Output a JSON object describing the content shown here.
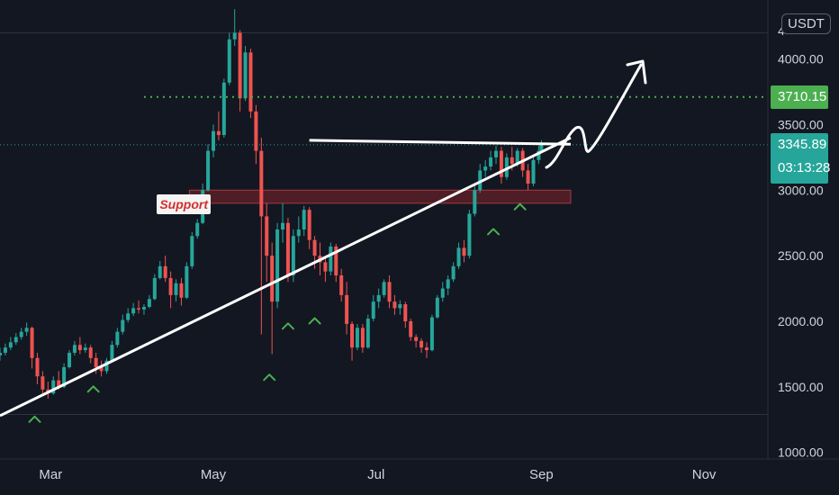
{
  "chart_data": {
    "type": "candlestick",
    "quote_currency": "USDT",
    "y_axis": {
      "ticks": [
        "4000.00",
        "3500.00",
        "3000.00",
        "2500.00",
        "2000.00",
        "1500.00",
        "1000.00"
      ],
      "top_partial_label": "4",
      "range": [
        950,
        4450
      ]
    },
    "x_axis": {
      "ticks": [
        {
          "label": "Mar",
          "date": "2021-03-01"
        },
        {
          "label": "May",
          "date": "2021-05-01"
        },
        {
          "label": "Jul",
          "date": "2021-07-01"
        },
        {
          "label": "Sep",
          "date": "2021-09-01"
        },
        {
          "label": "Nov",
          "date": "2021-11-01"
        }
      ],
      "range": [
        "2021-02-10",
        "2021-11-30"
      ]
    },
    "price_levels": {
      "target": "3710.15",
      "current": "3345.89",
      "countdown": "03:13:28",
      "target_color": "#4caf50",
      "current_color": "#26a69a"
    },
    "annotations": {
      "support_label": "Support",
      "support_zone": {
        "from_date": "2021-04-22",
        "to_date": "2021-09-12",
        "low": 2900,
        "high": 3000
      },
      "trendline": {
        "start": {
          "date": "2021-02-10",
          "price": 1280
        },
        "end": {
          "date": "2021-09-12",
          "price": 3400
        }
      },
      "resistance_line": {
        "start": {
          "date": "2021-06-06",
          "price": 3380
        },
        "end": {
          "date": "2021-09-12",
          "price": 3350
        }
      },
      "bounce_markers": [
        {
          "date": "2021-02-23",
          "price": 1370
        },
        {
          "date": "2021-03-17",
          "price": 1600
        },
        {
          "date": "2021-05-22",
          "price": 1690
        },
        {
          "date": "2021-05-29",
          "price": 2080
        },
        {
          "date": "2021-06-08",
          "price": 2120
        },
        {
          "date": "2021-08-14",
          "price": 2800
        },
        {
          "date": "2021-08-24",
          "price": 2990
        }
      ]
    },
    "candles": [
      {
        "date": "2021-02-10",
        "o": 1740,
        "h": 1800,
        "c": 1760,
        "l": 1700
      },
      {
        "date": "2021-02-12",
        "o": 1760,
        "h": 1830,
        "c": 1800,
        "l": 1740
      },
      {
        "date": "2021-02-14",
        "o": 1800,
        "h": 1880,
        "c": 1840,
        "l": 1780
      },
      {
        "date": "2021-02-16",
        "o": 1840,
        "h": 1910,
        "c": 1880,
        "l": 1820
      },
      {
        "date": "2021-02-18",
        "o": 1880,
        "h": 1950,
        "c": 1920,
        "l": 1860
      },
      {
        "date": "2021-02-20",
        "o": 1920,
        "h": 1990,
        "c": 1950,
        "l": 1890
      },
      {
        "date": "2021-02-22",
        "o": 1950,
        "h": 1960,
        "c": 1720,
        "l": 1640
      },
      {
        "date": "2021-02-24",
        "o": 1720,
        "h": 1760,
        "c": 1580,
        "l": 1520
      },
      {
        "date": "2021-02-26",
        "o": 1580,
        "h": 1620,
        "c": 1480,
        "l": 1430
      },
      {
        "date": "2021-02-28",
        "o": 1480,
        "h": 1540,
        "c": 1450,
        "l": 1410
      },
      {
        "date": "2021-03-02",
        "o": 1450,
        "h": 1580,
        "c": 1550,
        "l": 1440
      },
      {
        "date": "2021-03-04",
        "o": 1550,
        "h": 1620,
        "c": 1500,
        "l": 1480
      },
      {
        "date": "2021-03-06",
        "o": 1500,
        "h": 1680,
        "c": 1650,
        "l": 1490
      },
      {
        "date": "2021-03-08",
        "o": 1650,
        "h": 1780,
        "c": 1760,
        "l": 1640
      },
      {
        "date": "2021-03-10",
        "o": 1760,
        "h": 1850,
        "c": 1820,
        "l": 1740
      },
      {
        "date": "2021-03-12",
        "o": 1820,
        "h": 1880,
        "c": 1780,
        "l": 1750
      },
      {
        "date": "2021-03-14",
        "o": 1780,
        "h": 1830,
        "c": 1800,
        "l": 1760
      },
      {
        "date": "2021-03-16",
        "o": 1800,
        "h": 1820,
        "c": 1720,
        "l": 1680
      },
      {
        "date": "2021-03-18",
        "o": 1720,
        "h": 1760,
        "c": 1650,
        "l": 1600
      },
      {
        "date": "2021-03-20",
        "o": 1650,
        "h": 1700,
        "c": 1620,
        "l": 1580
      },
      {
        "date": "2021-03-22",
        "o": 1620,
        "h": 1720,
        "c": 1700,
        "l": 1600
      },
      {
        "date": "2021-03-24",
        "o": 1700,
        "h": 1850,
        "c": 1820,
        "l": 1690
      },
      {
        "date": "2021-03-26",
        "o": 1820,
        "h": 1950,
        "c": 1920,
        "l": 1800
      },
      {
        "date": "2021-03-28",
        "o": 1920,
        "h": 2050,
        "c": 2010,
        "l": 1900
      },
      {
        "date": "2021-03-30",
        "o": 2010,
        "h": 2100,
        "c": 2060,
        "l": 1990
      },
      {
        "date": "2021-04-01",
        "o": 2060,
        "h": 2140,
        "c": 2100,
        "l": 2040
      },
      {
        "date": "2021-04-03",
        "o": 2100,
        "h": 2160,
        "c": 2090,
        "l": 2060
      },
      {
        "date": "2021-04-05",
        "o": 2090,
        "h": 2130,
        "c": 2110,
        "l": 2050
      },
      {
        "date": "2021-04-07",
        "o": 2110,
        "h": 2200,
        "c": 2170,
        "l": 2100
      },
      {
        "date": "2021-04-09",
        "o": 2170,
        "h": 2360,
        "c": 2330,
        "l": 2160
      },
      {
        "date": "2021-04-11",
        "o": 2330,
        "h": 2460,
        "c": 2420,
        "l": 2320
      },
      {
        "date": "2021-04-13",
        "o": 2420,
        "h": 2500,
        "c": 2330,
        "l": 2300
      },
      {
        "date": "2021-04-15",
        "o": 2330,
        "h": 2380,
        "c": 2200,
        "l": 2100
      },
      {
        "date": "2021-04-17",
        "o": 2200,
        "h": 2320,
        "c": 2290,
        "l": 2150
      },
      {
        "date": "2021-04-19",
        "o": 2290,
        "h": 2330,
        "c": 2180,
        "l": 2120
      },
      {
        "date": "2021-04-21",
        "o": 2180,
        "h": 2450,
        "c": 2420,
        "l": 2170
      },
      {
        "date": "2021-04-23",
        "o": 2420,
        "h": 2680,
        "c": 2650,
        "l": 2400
      },
      {
        "date": "2021-04-25",
        "o": 2650,
        "h": 2780,
        "c": 2750,
        "l": 2630
      },
      {
        "date": "2021-04-27",
        "o": 2750,
        "h": 3050,
        "c": 3000,
        "l": 2740
      },
      {
        "date": "2021-04-29",
        "o": 3000,
        "h": 3350,
        "c": 3300,
        "l": 2990
      },
      {
        "date": "2021-05-01",
        "o": 3300,
        "h": 3500,
        "c": 3450,
        "l": 3250
      },
      {
        "date": "2021-05-03",
        "o": 3450,
        "h": 3600,
        "c": 3420,
        "l": 3380
      },
      {
        "date": "2021-05-05",
        "o": 3420,
        "h": 3850,
        "c": 3820,
        "l": 3400
      },
      {
        "date": "2021-05-07",
        "o": 3820,
        "h": 4200,
        "c": 4150,
        "l": 3800
      },
      {
        "date": "2021-05-09",
        "o": 4150,
        "h": 4380,
        "c": 4200,
        "l": 4100
      },
      {
        "date": "2021-05-11",
        "o": 4200,
        "h": 4220,
        "c": 3700,
        "l": 3600
      },
      {
        "date": "2021-05-13",
        "o": 3700,
        "h": 4100,
        "c": 4050,
        "l": 3680
      },
      {
        "date": "2021-05-15",
        "o": 4050,
        "h": 4080,
        "c": 3600,
        "l": 3550
      },
      {
        "date": "2021-05-17",
        "o": 3600,
        "h": 3650,
        "c": 3300,
        "l": 3200
      },
      {
        "date": "2021-05-19",
        "o": 3300,
        "h": 3400,
        "c": 2800,
        "l": 1900
      },
      {
        "date": "2021-05-21",
        "o": 2800,
        "h": 2900,
        "c": 2500,
        "l": 2300
      },
      {
        "date": "2021-05-23",
        "o": 2500,
        "h": 2600,
        "c": 2150,
        "l": 1750
      },
      {
        "date": "2021-05-25",
        "o": 2150,
        "h": 2750,
        "c": 2700,
        "l": 2100
      },
      {
        "date": "2021-05-27",
        "o": 2700,
        "h": 2900,
        "c": 2750,
        "l": 2600
      },
      {
        "date": "2021-05-29",
        "o": 2750,
        "h": 2790,
        "c": 2350,
        "l": 2300
      },
      {
        "date": "2021-05-31",
        "o": 2350,
        "h": 2700,
        "c": 2650,
        "l": 2300
      },
      {
        "date": "2021-06-02",
        "o": 2650,
        "h": 2800,
        "c": 2700,
        "l": 2600
      },
      {
        "date": "2021-06-04",
        "o": 2700,
        "h": 2880,
        "c": 2850,
        "l": 2650
      },
      {
        "date": "2021-06-06",
        "o": 2850,
        "h": 2870,
        "c": 2620,
        "l": 2550
      },
      {
        "date": "2021-06-08",
        "o": 2620,
        "h": 2650,
        "c": 2500,
        "l": 2400
      },
      {
        "date": "2021-06-10",
        "o": 2500,
        "h": 2600,
        "c": 2450,
        "l": 2350
      },
      {
        "date": "2021-06-12",
        "o": 2450,
        "h": 2500,
        "c": 2380,
        "l": 2300
      },
      {
        "date": "2021-06-14",
        "o": 2380,
        "h": 2600,
        "c": 2570,
        "l": 2350
      },
      {
        "date": "2021-06-16",
        "o": 2570,
        "h": 2590,
        "c": 2350,
        "l": 2300
      },
      {
        "date": "2021-06-18",
        "o": 2350,
        "h": 2400,
        "c": 2200,
        "l": 2150
      },
      {
        "date": "2021-06-20",
        "o": 2200,
        "h": 2300,
        "c": 1980,
        "l": 1900
      },
      {
        "date": "2021-06-22",
        "o": 1980,
        "h": 2000,
        "c": 1800,
        "l": 1700
      },
      {
        "date": "2021-06-24",
        "o": 1800,
        "h": 1980,
        "c": 1950,
        "l": 1780
      },
      {
        "date": "2021-06-26",
        "o": 1950,
        "h": 1980,
        "c": 1800,
        "l": 1760
      },
      {
        "date": "2021-06-28",
        "o": 1800,
        "h": 2050,
        "c": 2020,
        "l": 1790
      },
      {
        "date": "2021-06-30",
        "o": 2020,
        "h": 2200,
        "c": 2150,
        "l": 2000
      },
      {
        "date": "2021-07-02",
        "o": 2150,
        "h": 2250,
        "c": 2200,
        "l": 2100
      },
      {
        "date": "2021-07-04",
        "o": 2200,
        "h": 2320,
        "c": 2300,
        "l": 2180
      },
      {
        "date": "2021-07-06",
        "o": 2300,
        "h": 2350,
        "c": 2150,
        "l": 2100
      },
      {
        "date": "2021-07-08",
        "o": 2150,
        "h": 2200,
        "c": 2100,
        "l": 2050
      },
      {
        "date": "2021-07-10",
        "o": 2100,
        "h": 2160,
        "c": 2130,
        "l": 2050
      },
      {
        "date": "2021-07-12",
        "o": 2130,
        "h": 2150,
        "c": 2000,
        "l": 1950
      },
      {
        "date": "2021-07-14",
        "o": 2000,
        "h": 2020,
        "c": 1880,
        "l": 1850
      },
      {
        "date": "2021-07-16",
        "o": 1880,
        "h": 1900,
        "c": 1850,
        "l": 1800
      },
      {
        "date": "2021-07-18",
        "o": 1850,
        "h": 1870,
        "c": 1800,
        "l": 1760
      },
      {
        "date": "2021-07-20",
        "o": 1800,
        "h": 1840,
        "c": 1780,
        "l": 1720
      },
      {
        "date": "2021-07-22",
        "o": 1780,
        "h": 2050,
        "c": 2030,
        "l": 1770
      },
      {
        "date": "2021-07-24",
        "o": 2030,
        "h": 2200,
        "c": 2180,
        "l": 2020
      },
      {
        "date": "2021-07-26",
        "o": 2180,
        "h": 2300,
        "c": 2250,
        "l": 2150
      },
      {
        "date": "2021-07-28",
        "o": 2250,
        "h": 2350,
        "c": 2320,
        "l": 2200
      },
      {
        "date": "2021-07-30",
        "o": 2320,
        "h": 2450,
        "c": 2420,
        "l": 2300
      },
      {
        "date": "2021-08-01",
        "o": 2420,
        "h": 2600,
        "c": 2560,
        "l": 2400
      },
      {
        "date": "2021-08-03",
        "o": 2560,
        "h": 2620,
        "c": 2500,
        "l": 2450
      },
      {
        "date": "2021-08-05",
        "o": 2500,
        "h": 2850,
        "c": 2820,
        "l": 2480
      },
      {
        "date": "2021-08-07",
        "o": 2820,
        "h": 3050,
        "c": 3000,
        "l": 2800
      },
      {
        "date": "2021-08-09",
        "o": 3000,
        "h": 3200,
        "c": 3150,
        "l": 2980
      },
      {
        "date": "2021-08-11",
        "o": 3150,
        "h": 3230,
        "c": 3180,
        "l": 3100
      },
      {
        "date": "2021-08-13",
        "o": 3180,
        "h": 3300,
        "c": 3250,
        "l": 3150
      },
      {
        "date": "2021-08-15",
        "o": 3250,
        "h": 3340,
        "c": 3300,
        "l": 3200
      },
      {
        "date": "2021-08-17",
        "o": 3300,
        "h": 3330,
        "c": 3100,
        "l": 3050
      },
      {
        "date": "2021-08-19",
        "o": 3100,
        "h": 3280,
        "c": 3250,
        "l": 3080
      },
      {
        "date": "2021-08-21",
        "o": 3250,
        "h": 3330,
        "c": 3200,
        "l": 3150
      },
      {
        "date": "2021-08-23",
        "o": 3200,
        "h": 3320,
        "c": 3300,
        "l": 3180
      },
      {
        "date": "2021-08-25",
        "o": 3300,
        "h": 3320,
        "c": 3150,
        "l": 3100
      },
      {
        "date": "2021-08-27",
        "o": 3150,
        "h": 3200,
        "c": 3050,
        "l": 3000
      },
      {
        "date": "2021-08-29",
        "o": 3050,
        "h": 3250,
        "c": 3230,
        "l": 3030
      },
      {
        "date": "2021-08-31",
        "o": 3230,
        "h": 3340,
        "c": 3300,
        "l": 3200
      },
      {
        "date": "2021-09-01",
        "o": 3300,
        "h": 3380,
        "c": 3346,
        "l": 3280
      }
    ]
  }
}
